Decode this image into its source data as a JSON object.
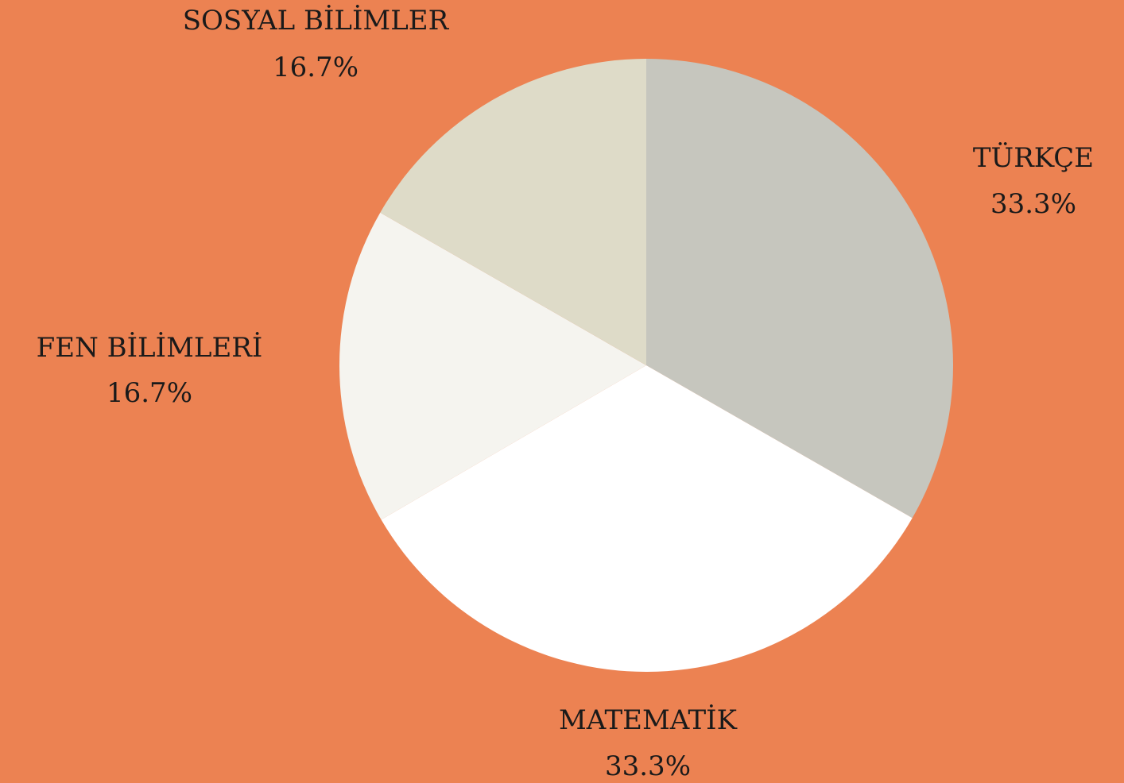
{
  "background_color": "#EC8252",
  "chart_data": {
    "type": "pie",
    "start_angle_deg": 0,
    "direction": "clockwise",
    "slices": [
      {
        "label": "TÜRKÇE",
        "value": 33.3,
        "percent_label": "33.3%",
        "color": "#C6C6BE"
      },
      {
        "label": "MATEMATİK",
        "value": 33.3,
        "percent_label": "33.3%",
        "color": "#FFFFFF"
      },
      {
        "label": "FEN BİLİMLERİ",
        "value": 16.7,
        "percent_label": "16.7%",
        "color": "#F5F4EF"
      },
      {
        "label": "SOSYAL BİLİMLER",
        "value": 16.7,
        "percent_label": "16.7%",
        "color": "#DEDBC8"
      }
    ]
  }
}
